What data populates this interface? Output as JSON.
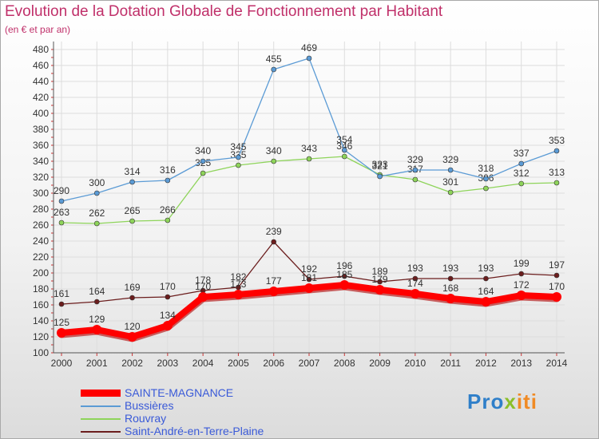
{
  "header": {
    "title": "Evolution de la Dotation Globale de Fonctionnement par Habitant",
    "subtitle": "(en € et par an)"
  },
  "chart_data": {
    "type": "line",
    "title": "Evolution de la Dotation Globale de Fonctionnement par Habitant",
    "subtitle": "(en € et par an)",
    "xlabel": "",
    "ylabel": "",
    "x": [
      "2000",
      "2001",
      "2002",
      "2003",
      "2004",
      "2005",
      "2006",
      "2007",
      "2008",
      "2009",
      "2010",
      "2011",
      "2012",
      "2013",
      "2014"
    ],
    "ylim": [
      100,
      480
    ],
    "yticks": [
      100,
      120,
      140,
      160,
      180,
      200,
      220,
      240,
      260,
      280,
      300,
      320,
      340,
      360,
      380,
      400,
      420,
      440,
      460,
      480
    ],
    "grid": true,
    "legend_position": "bottom-left",
    "series": [
      {
        "name": "SAINTE-MAGNANCE",
        "color": "#ff0000",
        "values": [
          125,
          129,
          120,
          134,
          170,
          173,
          177,
          181,
          185,
          179,
          174,
          168,
          164,
          172,
          170
        ],
        "labels": [
          "125",
          "129",
          "120",
          "134",
          "170",
          "173",
          "177",
          "181",
          "185",
          "179",
          "174",
          "168",
          "164",
          "172",
          "170"
        ]
      },
      {
        "name": "Bussières",
        "color": "#5b9bd5",
        "values": [
          290,
          300,
          314,
          316,
          340,
          345,
          455,
          469,
          354,
          321,
          329,
          329,
          318,
          337,
          353
        ],
        "labels": [
          "290",
          "300",
          "314",
          "316",
          "340",
          "345",
          "455",
          "469",
          "354",
          "321",
          "329",
          "329",
          "318",
          "337",
          "353"
        ]
      },
      {
        "name": "Rouvray",
        "color": "#8ed45a",
        "values": [
          263,
          262,
          265,
          266,
          325,
          335,
          340,
          343,
          346,
          323,
          317,
          301,
          306,
          312,
          313
        ],
        "labels": [
          "263",
          "262",
          "265",
          "266",
          "325",
          "335",
          "340",
          "343",
          "346",
          "323",
          "317",
          "301",
          "306",
          "312",
          "313"
        ]
      },
      {
        "name": "Saint-André-en-Terre-Plaine",
        "color": "#6b1d1d",
        "values": [
          161,
          164,
          169,
          170,
          178,
          182,
          239,
          192,
          196,
          189,
          193,
          193,
          193,
          199,
          197
        ],
        "labels": [
          "161",
          "164",
          "169",
          "170",
          "178",
          "182",
          "239",
          "192",
          "196",
          "189",
          "193",
          "193",
          "193",
          "199",
          "197"
        ]
      }
    ]
  },
  "brand": {
    "part1": "Pro",
    "part2": "x",
    "part3": "iti"
  }
}
